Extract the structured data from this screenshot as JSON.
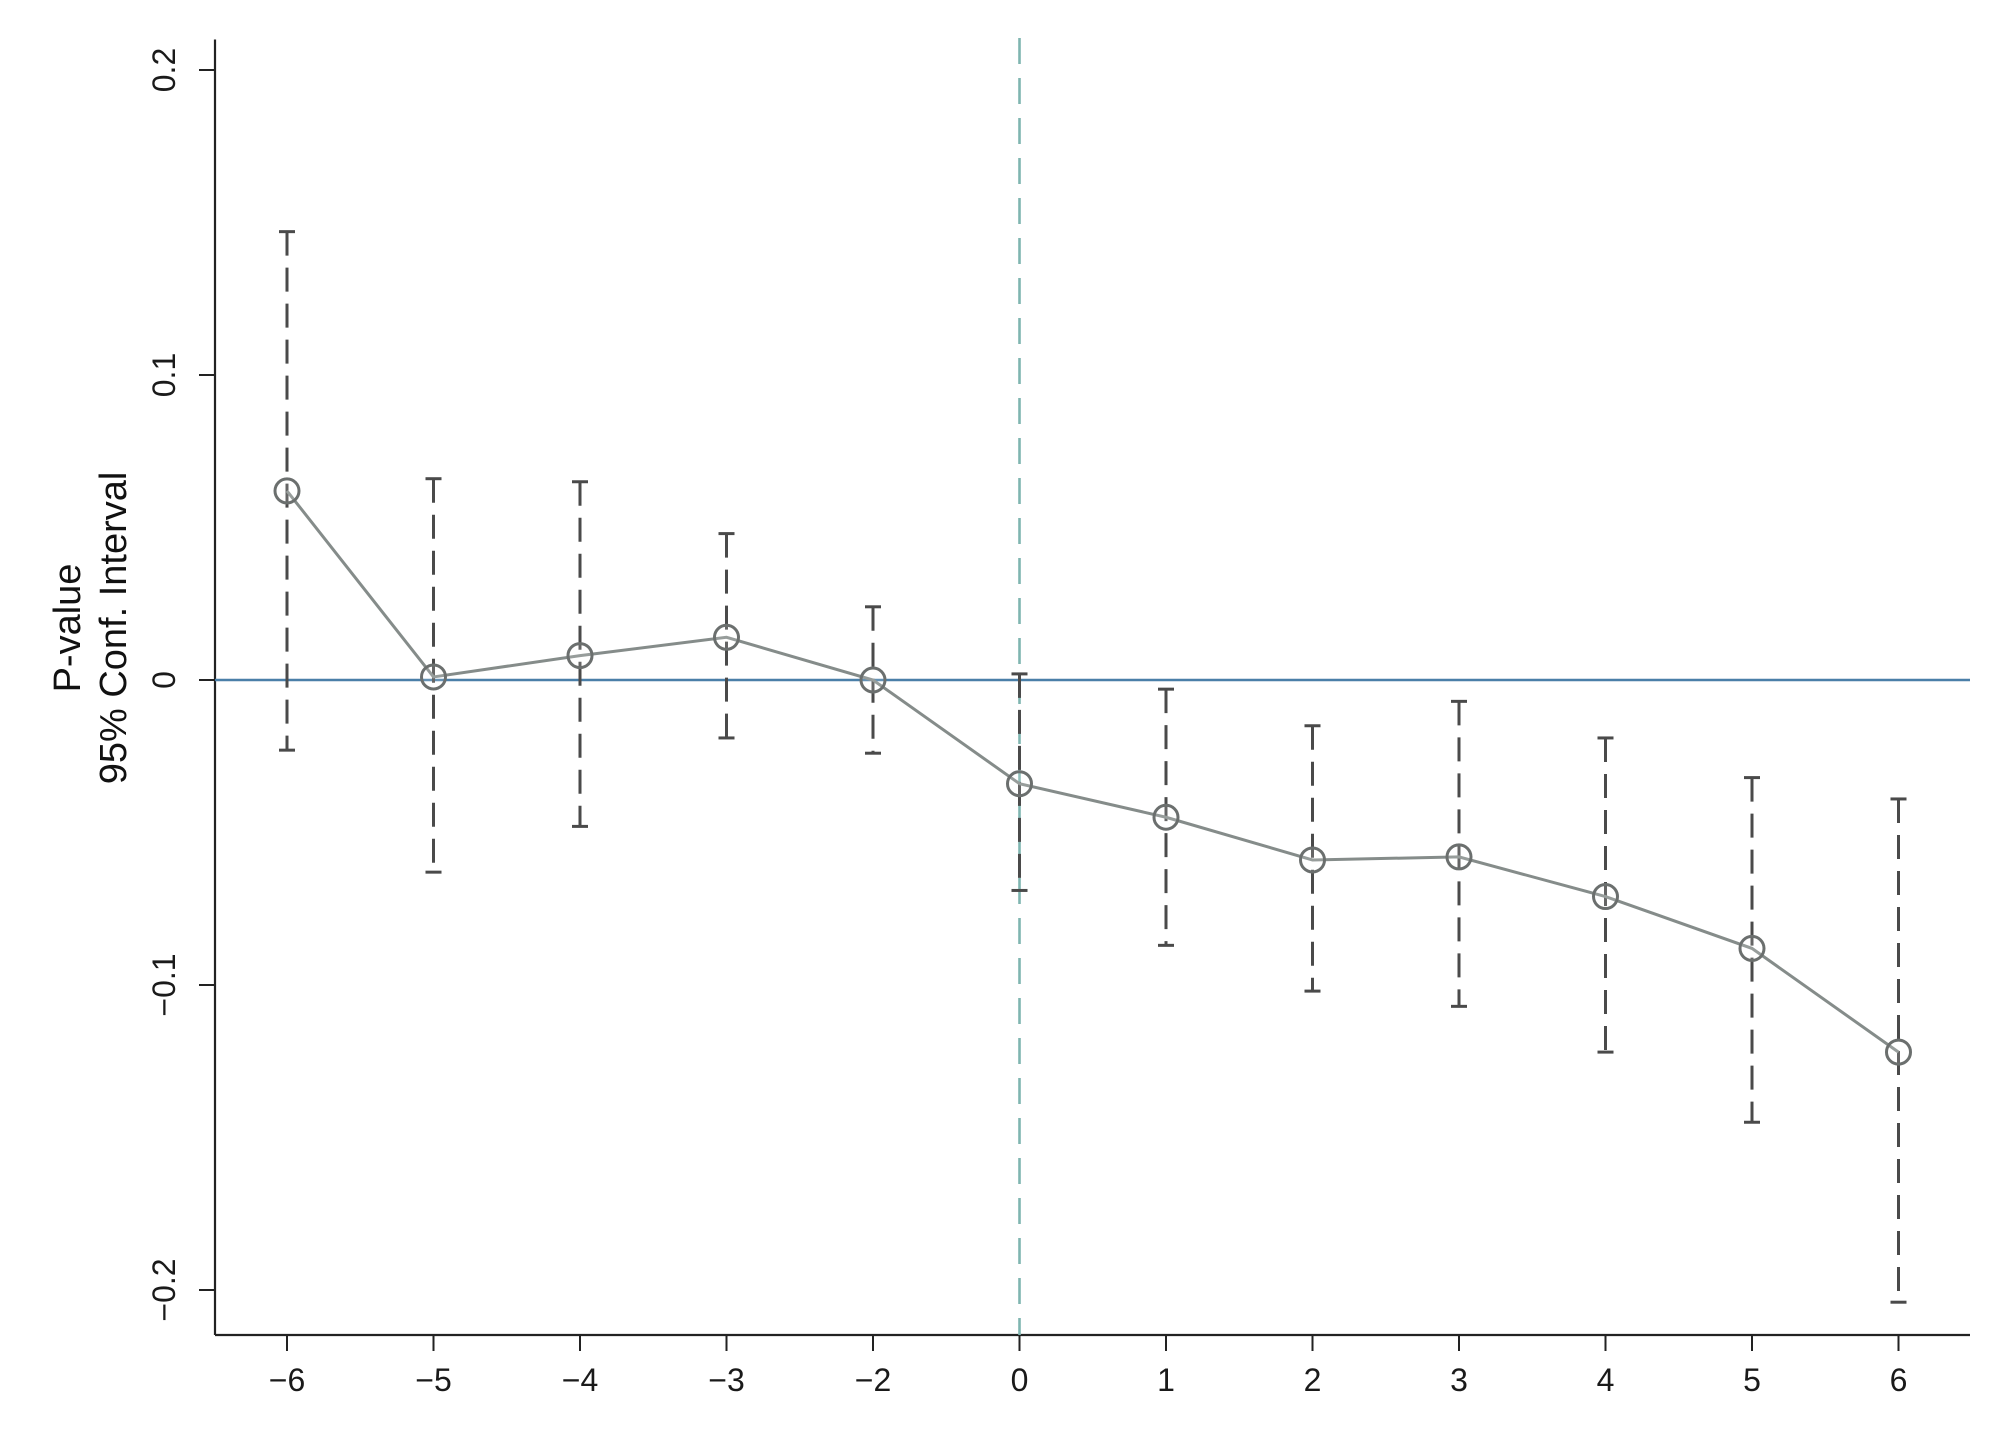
{
  "chart_data": {
    "type": "line",
    "title": "",
    "xlabel": "",
    "ylabel_lines": [
      "P-value",
      "95% Conf. Interval"
    ],
    "x_categories": [
      "−6",
      "−5",
      "−4",
      "−3",
      "−2",
      "0",
      "1",
      "2",
      "3",
      "4",
      "5",
      "6"
    ],
    "y_ticks": [
      {
        "value": 0.2,
        "label": "0.2"
      },
      {
        "value": 0.1,
        "label": "0.1"
      },
      {
        "value": 0,
        "label": "0"
      },
      {
        "value": -0.1,
        "label": "−0.1"
      },
      {
        "value": -0.2,
        "label": "−0.2"
      }
    ],
    "ylim": [
      -0.215,
      0.21
    ],
    "reference_lines": {
      "horizontal_y": 0,
      "vertical_x_category": "0"
    },
    "series": [
      {
        "point_estimates": [
          0.062,
          0.001,
          0.008,
          0.014,
          0.0,
          -0.034,
          -0.045,
          -0.059,
          -0.058,
          -0.071,
          -0.088,
          -0.122
        ],
        "ci_lower": [
          -0.023,
          -0.063,
          -0.048,
          -0.019,
          -0.024,
          -0.069,
          -0.087,
          -0.102,
          -0.107,
          -0.122,
          -0.145,
          -0.204
        ],
        "ci_upper": [
          0.147,
          0.066,
          0.065,
          0.048,
          0.024,
          0.002,
          -0.003,
          -0.015,
          -0.007,
          -0.019,
          -0.032,
          -0.039
        ]
      }
    ],
    "grid": false,
    "colors": {
      "line": "#858c8a",
      "marker": "#6b6f6e",
      "ci": "#4a4a4a",
      "zero_line": "#4a7fa8",
      "event_line": "#7fb5b0",
      "axis": "#222222"
    }
  }
}
